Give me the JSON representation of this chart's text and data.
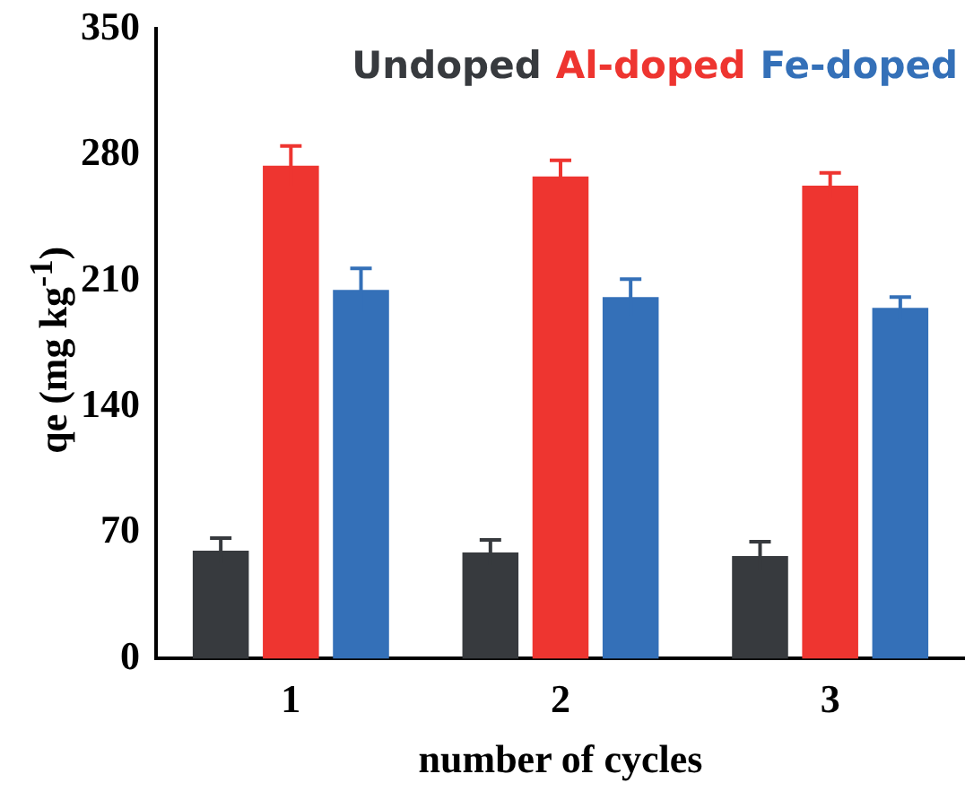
{
  "chart_data": {
    "type": "bar",
    "xlabel": "number of cycles",
    "ylabel": "qe (mg kg$^{-1}$)",
    "categories": [
      "1",
      "2",
      "3"
    ],
    "series": [
      {
        "name": "Undoped",
        "color": "#373a3e",
        "values": [
          60,
          59,
          57
        ],
        "errors": [
          7,
          7,
          8
        ]
      },
      {
        "name": "Al-doped",
        "color": "#ee3530",
        "values": [
          274,
          268,
          263
        ],
        "errors": [
          11,
          9,
          7
        ]
      },
      {
        "name": "Fe-doped",
        "color": "#3470b8",
        "values": [
          205,
          201,
          195
        ],
        "errors": [
          12,
          10,
          6
        ]
      }
    ],
    "ylim": [
      0,
      350
    ],
    "yticks": [
      0,
      70,
      140,
      210,
      280,
      350
    ],
    "grid": false,
    "legend": "top right"
  }
}
